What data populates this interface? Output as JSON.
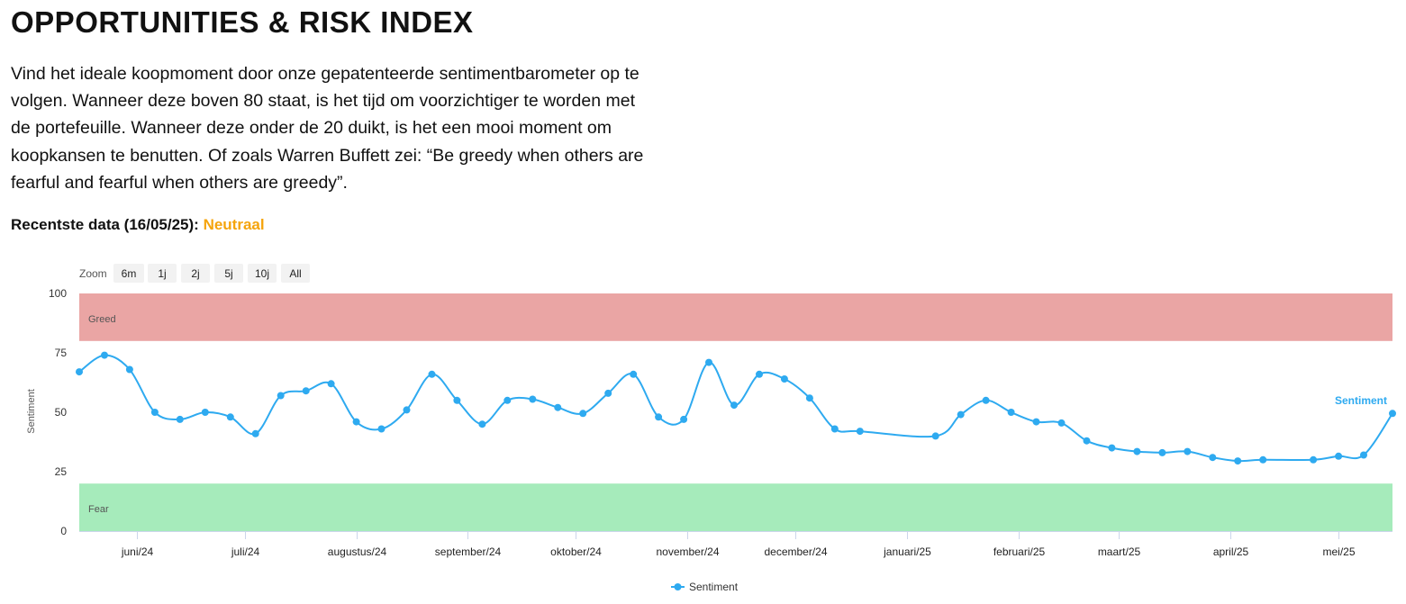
{
  "header": {
    "title": "OPPORTUNITIES & RISK INDEX",
    "intro": "Vind het ideale koopmoment door onze gepatenteerde sentimentbarometer op te volgen. Wanneer deze boven 80 staat, is het tijd om voorzichtiger te worden met de portefeuille. Wanneer deze onder de 20 duikt, is het een mooi moment om koopkansen te benutten. Of zoals Warren Buffett zei: “Be greedy when others are fearful and fearful when others are greedy”.",
    "recent_label": "Recentste data (16/05/25):",
    "recent_status": "Neutraal",
    "status_color": "#f5a40c"
  },
  "zoom": {
    "label": "Zoom",
    "buttons": [
      "6m",
      "1j",
      "2j",
      "5j",
      "10j",
      "All"
    ]
  },
  "chart_data": {
    "type": "line",
    "ylabel": "Sentiment",
    "ylim": [
      0,
      100
    ],
    "yticks": [
      0,
      25,
      50,
      75,
      100
    ],
    "xlim": [
      "2024-05-16",
      "2025-05-16"
    ],
    "xticks": [
      {
        "date": "2024-06-01",
        "label": "juni/24"
      },
      {
        "date": "2024-07-01",
        "label": "juli/24"
      },
      {
        "date": "2024-08-01",
        "label": "augustus/24"
      },
      {
        "date": "2024-09-01",
        "label": "september/24"
      },
      {
        "date": "2024-10-01",
        "label": "oktober/24"
      },
      {
        "date": "2024-11-01",
        "label": "november/24"
      },
      {
        "date": "2024-12-01",
        "label": "december/24"
      },
      {
        "date": "2025-01-01",
        "label": "januari/25"
      },
      {
        "date": "2025-02-01",
        "label": "februari/25"
      },
      {
        "date": "2025-03-01",
        "label": "maart/25"
      },
      {
        "date": "2025-04-01",
        "label": "april/25"
      },
      {
        "date": "2025-05-01",
        "label": "mei/25"
      }
    ],
    "bands": [
      {
        "label": "Greed",
        "from": 80,
        "to": 100,
        "color": "#eaa5a4"
      },
      {
        "label": "Fear",
        "from": 0,
        "to": 20,
        "color": "#a6ebbb"
      }
    ],
    "series": [
      {
        "name": "Sentiment",
        "color": "#2eaaf0",
        "points": [
          {
            "x": "2024-05-16",
            "y": 67
          },
          {
            "x": "2024-05-23",
            "y": 74
          },
          {
            "x": "2024-05-30",
            "y": 68
          },
          {
            "x": "2024-06-06",
            "y": 50
          },
          {
            "x": "2024-06-13",
            "y": 47
          },
          {
            "x": "2024-06-20",
            "y": 50
          },
          {
            "x": "2024-06-27",
            "y": 48
          },
          {
            "x": "2024-07-04",
            "y": 41
          },
          {
            "x": "2024-07-11",
            "y": 57
          },
          {
            "x": "2024-07-18",
            "y": 59
          },
          {
            "x": "2024-07-25",
            "y": 62
          },
          {
            "x": "2024-08-01",
            "y": 46
          },
          {
            "x": "2024-08-08",
            "y": 43
          },
          {
            "x": "2024-08-15",
            "y": 51
          },
          {
            "x": "2024-08-22",
            "y": 66
          },
          {
            "x": "2024-08-29",
            "y": 55
          },
          {
            "x": "2024-09-05",
            "y": 45
          },
          {
            "x": "2024-09-12",
            "y": 55
          },
          {
            "x": "2024-09-19",
            "y": 55.5
          },
          {
            "x": "2024-09-26",
            "y": 52
          },
          {
            "x": "2024-10-03",
            "y": 49.5
          },
          {
            "x": "2024-10-10",
            "y": 58
          },
          {
            "x": "2024-10-17",
            "y": 66
          },
          {
            "x": "2024-10-24",
            "y": 48
          },
          {
            "x": "2024-10-31",
            "y": 47
          },
          {
            "x": "2024-11-07",
            "y": 71
          },
          {
            "x": "2024-11-14",
            "y": 53
          },
          {
            "x": "2024-11-21",
            "y": 66
          },
          {
            "x": "2024-11-28",
            "y": 64
          },
          {
            "x": "2024-12-05",
            "y": 56
          },
          {
            "x": "2024-12-12",
            "y": 43
          },
          {
            "x": "2024-12-19",
            "y": 42
          },
          {
            "x": "2025-01-09",
            "y": 40
          },
          {
            "x": "2025-01-16",
            "y": 49
          },
          {
            "x": "2025-01-23",
            "y": 55
          },
          {
            "x": "2025-01-30",
            "y": 50
          },
          {
            "x": "2025-02-06",
            "y": 46
          },
          {
            "x": "2025-02-13",
            "y": 45.5
          },
          {
            "x": "2025-02-20",
            "y": 38
          },
          {
            "x": "2025-02-27",
            "y": 35
          },
          {
            "x": "2025-03-06",
            "y": 33.5
          },
          {
            "x": "2025-03-13",
            "y": 33
          },
          {
            "x": "2025-03-20",
            "y": 33.5
          },
          {
            "x": "2025-03-27",
            "y": 31
          },
          {
            "x": "2025-04-03",
            "y": 29.5
          },
          {
            "x": "2025-04-10",
            "y": 30
          },
          {
            "x": "2025-04-24",
            "y": 30
          },
          {
            "x": "2025-05-01",
            "y": 31.5
          },
          {
            "x": "2025-05-08",
            "y": 32
          },
          {
            "x": "2025-05-16",
            "y": 49.5
          }
        ]
      }
    ],
    "legend_position": "bottom-center",
    "series_label": "Sentiment",
    "grid": false
  }
}
